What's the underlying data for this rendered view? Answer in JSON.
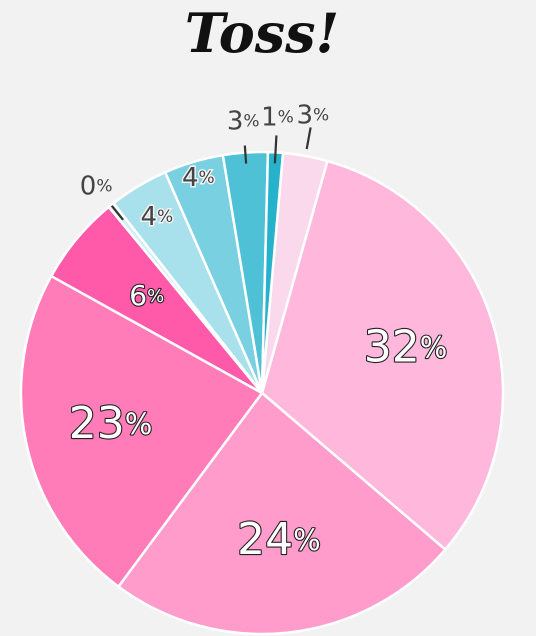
{
  "chart_data": {
    "type": "pie",
    "title": "Toss!",
    "slices": [
      {
        "label": "3",
        "value": 3,
        "color": "#fbd9ec"
      },
      {
        "label": "32",
        "value": 32,
        "color": "#ffb8dc"
      },
      {
        "label": "24",
        "value": 24,
        "color": "#ff9ccb"
      },
      {
        "label": "23",
        "value": 23,
        "color": "#ff7cb8"
      },
      {
        "label": "6",
        "value": 6,
        "color": "#ff5aaa"
      },
      {
        "label": "0",
        "value": 0.4,
        "color": "#d2eef4"
      },
      {
        "label": "4",
        "value": 4,
        "color": "#a8e1ec"
      },
      {
        "label": "4",
        "value": 4,
        "color": "#79d0e1"
      },
      {
        "label": "3",
        "value": 3,
        "color": "#4ec1d6"
      },
      {
        "label": "1",
        "value": 1,
        "color": "#26b2cb"
      }
    ],
    "percent_symbol": "%",
    "slice_border_color": "#ffffff"
  }
}
